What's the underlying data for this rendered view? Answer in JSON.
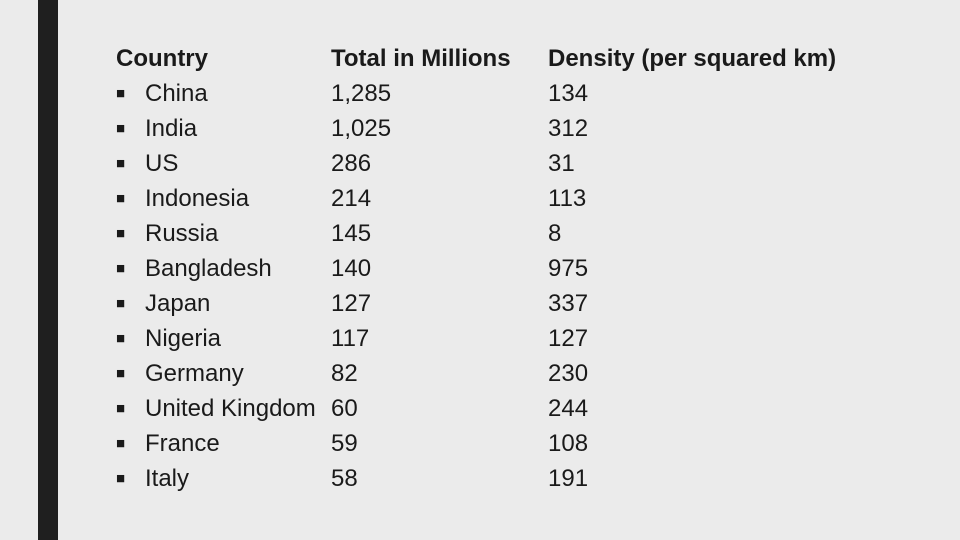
{
  "header": {
    "country": "Country",
    "total": "Total in Millions",
    "density": "Density (per squared km)"
  },
  "bullet_glyph": "■",
  "rows": [
    {
      "country": "China",
      "total": "1,285",
      "density": "134"
    },
    {
      "country": "India",
      "total": "1,025",
      "density": "312"
    },
    {
      "country": "US",
      "total": "286",
      "density": "31"
    },
    {
      "country": "Indonesia",
      "total": "214",
      "density": "113"
    },
    {
      "country": "Russia",
      "total": "145",
      "density": "8"
    },
    {
      "country": "Bangladesh",
      "total": "140",
      "density": "975"
    },
    {
      "country": "Japan",
      "total": "127",
      "density": "337"
    },
    {
      "country": "Nigeria",
      "total": "117",
      "density": "127"
    },
    {
      "country": "Germany",
      "total": "82",
      "density": "230"
    },
    {
      "country": "United Kingdom",
      "total": "60",
      "density": "244"
    },
    {
      "country": "France",
      "total": "59",
      "density": "108"
    },
    {
      "country": "Italy",
      "total": "58",
      "density": "191"
    }
  ]
}
